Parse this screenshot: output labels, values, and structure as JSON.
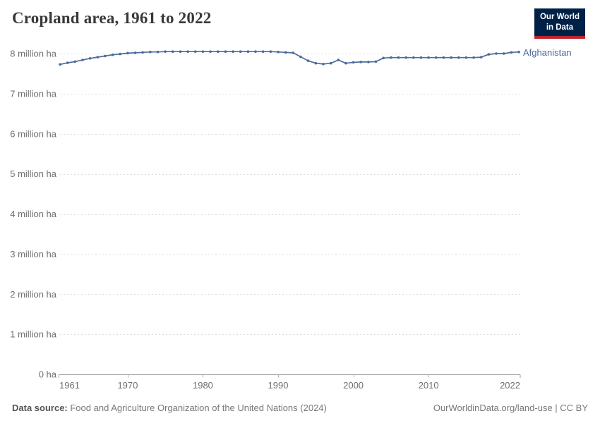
{
  "header": {
    "title": "Cropland area, 1961 to 2022",
    "logo": {
      "line1": "Our World",
      "line2": "in Data"
    }
  },
  "chart_data": {
    "type": "line",
    "title": "Cropland area, 1961 to 2022",
    "xlabel": "",
    "ylabel": "",
    "unit": "ha",
    "grid": "dashed-horizontal",
    "legend_position": "end-of-line",
    "x_range": [
      1961,
      2022
    ],
    "y_range": [
      0,
      8000000
    ],
    "yticks": [
      {
        "value": 8000000,
        "label": "8 million ha"
      },
      {
        "value": 7000000,
        "label": "7 million ha"
      },
      {
        "value": 6000000,
        "label": "6 million ha"
      },
      {
        "value": 5000000,
        "label": "5 million ha"
      },
      {
        "value": 4000000,
        "label": "4 million ha"
      },
      {
        "value": 3000000,
        "label": "3 million ha"
      },
      {
        "value": 2000000,
        "label": "2 million ha"
      },
      {
        "value": 1000000,
        "label": "1 million ha"
      },
      {
        "value": 0,
        "label": "0 ha"
      }
    ],
    "xticks": [
      1961,
      1970,
      1980,
      1990,
      2000,
      2010,
      2022
    ],
    "series": [
      {
        "name": "Afghanistan",
        "color": "#4C6A9C",
        "x": [
          1961,
          1962,
          1963,
          1964,
          1965,
          1966,
          1967,
          1968,
          1969,
          1970,
          1971,
          1972,
          1973,
          1974,
          1975,
          1976,
          1977,
          1978,
          1979,
          1980,
          1981,
          1982,
          1983,
          1984,
          1985,
          1986,
          1987,
          1988,
          1989,
          1990,
          1991,
          1992,
          1993,
          1994,
          1995,
          1996,
          1997,
          1998,
          1999,
          2000,
          2001,
          2002,
          2003,
          2004,
          2005,
          2006,
          2007,
          2008,
          2009,
          2010,
          2011,
          2012,
          2013,
          2014,
          2015,
          2016,
          2017,
          2018,
          2019,
          2020,
          2021,
          2022
        ],
        "values": [
          7730000,
          7770000,
          7800000,
          7840000,
          7880000,
          7910000,
          7940000,
          7970000,
          7990000,
          8010000,
          8020000,
          8030000,
          8040000,
          8040000,
          8050000,
          8050000,
          8050000,
          8050000,
          8050000,
          8050000,
          8050000,
          8050000,
          8050000,
          8050000,
          8050000,
          8050000,
          8050000,
          8050000,
          8050000,
          8040000,
          8030000,
          8020000,
          7920000,
          7820000,
          7760000,
          7740000,
          7760000,
          7840000,
          7760000,
          7780000,
          7790000,
          7790000,
          7800000,
          7890000,
          7900000,
          7900000,
          7900000,
          7900000,
          7900000,
          7900000,
          7900000,
          7900000,
          7900000,
          7900000,
          7900000,
          7900000,
          7910000,
          7980000,
          8000000,
          8000000,
          8030000,
          8040000
        ]
      }
    ]
  },
  "footer": {
    "source_label": "Data source:",
    "source_text": " Food and Agriculture Organization of the United Nations (2024)",
    "credit": "OurWorldinData.org/land-use | CC BY"
  },
  "colors": {
    "accent": "#4C6A9C",
    "logo_navy": "#002147",
    "logo_red": "#be232d",
    "grid": "#dcdcdc",
    "axis": "#9e9e9e",
    "tick_text": "#6f6f6f",
    "title_text": "#383838"
  }
}
